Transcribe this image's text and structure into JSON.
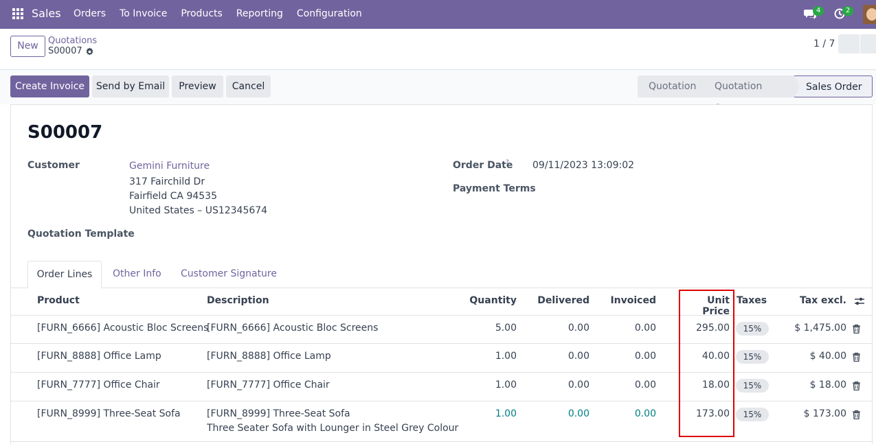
{
  "navbar": {
    "app_name": "Sales",
    "menu": [
      "Orders",
      "To Invoice",
      "Products",
      "Reporting",
      "Configuration"
    ],
    "chat_count": "4",
    "activity_count": "2"
  },
  "control": {
    "new_label": "New",
    "breadcrumb_parent": "Quotations",
    "breadcrumb_current": "S00007",
    "pager": "1 / 7"
  },
  "actions": {
    "create_invoice": "Create Invoice",
    "send_email": "Send by Email",
    "preview": "Preview",
    "cancel": "Cancel"
  },
  "status": {
    "stages": [
      "Quotation",
      "Quotation Sent",
      "Sales Order"
    ],
    "current": "Sales Order"
  },
  "form": {
    "title": "S00007",
    "customer_label": "Customer",
    "customer_name": "Gemini Furniture",
    "address": [
      "317 Fairchild Dr",
      "Fairfield CA 94535",
      "United States – US12345674"
    ],
    "quotation_template_label": "Quotation Template",
    "order_date_label": "Order Date",
    "order_date_help": "?",
    "order_date": "09/11/2023 13:09:02",
    "payment_terms_label": "Payment Terms"
  },
  "tabs": [
    "Order Lines",
    "Other Info",
    "Customer Signature"
  ],
  "table": {
    "headers": {
      "product": "Product",
      "description": "Description",
      "quantity": "Quantity",
      "delivered": "Delivered",
      "invoiced": "Invoiced",
      "unit_price": "Unit Price",
      "taxes": "Taxes",
      "tax_excl": "Tax excl."
    },
    "rows": [
      {
        "product": "[FURN_6666] Acoustic Bloc Screens",
        "description": "[FURN_6666] Acoustic Bloc Screens",
        "description2": "",
        "quantity": "5.00",
        "delivered": "0.00",
        "invoiced": "0.00",
        "unit_price": "295.00",
        "tax": "15%",
        "subtotal": "$ 1,475.00"
      },
      {
        "product": "[FURN_8888] Office Lamp",
        "description": "[FURN_8888] Office Lamp",
        "description2": "",
        "quantity": "1.00",
        "delivered": "0.00",
        "invoiced": "0.00",
        "unit_price": "40.00",
        "tax": "15%",
        "subtotal": "$ 40.00"
      },
      {
        "product": "[FURN_7777] Office Chair",
        "description": "[FURN_7777] Office Chair",
        "description2": "",
        "quantity": "1.00",
        "delivered": "0.00",
        "invoiced": "0.00",
        "unit_price": "18.00",
        "tax": "15%",
        "subtotal": "$ 18.00"
      },
      {
        "product": "[FURN_8999] Three-Seat Sofa",
        "description": "[FURN_8999] Three-Seat Sofa",
        "description2": "Three Seater Sofa with Lounger in Steel Grey Colour",
        "quantity": "1.00",
        "delivered": "0.00",
        "invoiced": "0.00",
        "unit_price": "173.00",
        "tax": "15%",
        "subtotal": "$ 173.00"
      }
    ]
  },
  "colors": {
    "brand": "#71639e",
    "highlight": "#e00000",
    "badge": "#28a745"
  }
}
